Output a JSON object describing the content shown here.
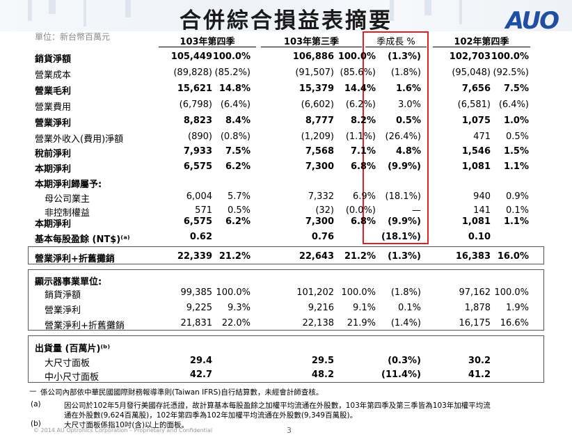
{
  "title": "合併綜合損益表摘要",
  "logo": "AUO",
  "unit": "單位：新台幣百萬元",
  "headers": {
    "q4_103": "103年第四季",
    "q3_103": "103年第三季",
    "qoq": "季成長 %",
    "q4_102": "102年第四季"
  },
  "rows": [
    {
      "label": "銷貨淨額",
      "v": [
        "105,449",
        "100.0%",
        "106,886",
        "100.0%",
        "(1.3%)",
        "102,703",
        "100.0%"
      ]
    },
    {
      "label": "營業成本",
      "v": [
        "(89,828)",
        "(85.2%)",
        "(91,507)",
        "(85.6%)",
        "(1.8%)",
        "(95,048)",
        "(92.5%)"
      ]
    },
    {
      "label": "營業毛利",
      "v": [
        "15,621",
        "14.8%",
        "15,379",
        "14.4%",
        "1.6%",
        "7,656",
        "7.5%"
      ]
    },
    {
      "label": "營業費用",
      "v": [
        "(6,798)",
        "(6.4%)",
        "(6,602)",
        "(6.2%)",
        "3.0%",
        "(6,581)",
        "(6.4%)"
      ]
    },
    {
      "label": "營業淨利",
      "v": [
        "8,823",
        "8.4%",
        "8,777",
        "8.2%",
        "0.5%",
        "1,075",
        "1.0%"
      ]
    },
    {
      "label": "營業外收入(費用)淨額",
      "v": [
        "(890)",
        "(0.8%)",
        "(1,209)",
        "(1.1%)",
        "(26.4%)",
        "471",
        "0.5%"
      ]
    },
    {
      "label": "稅前淨利",
      "v": [
        "7,933",
        "7.5%",
        "7,568",
        "7.1%",
        "4.8%",
        "1,546",
        "1.5%"
      ]
    },
    {
      "label": "本期淨利",
      "v": [
        "6,575",
        "6.2%",
        "7,300",
        "6.8%",
        "(9.9%)",
        "1,081",
        "1.1%"
      ]
    },
    {
      "label": "本期淨利歸屬予:",
      "v": [
        "",
        "",
        "",
        "",
        "",
        "",
        ""
      ]
    },
    {
      "label": "母公司業主",
      "v": [
        "6,004",
        "5.7%",
        "7,332",
        "6.9%",
        "(18.1%)",
        "940",
        "0.9%"
      ]
    },
    {
      "label": "非控制權益",
      "v": [
        "571",
        "0.5%",
        "(32)",
        "(0.0%)",
        "—",
        "141",
        "0.1%"
      ]
    },
    {
      "label": "本期淨利",
      "v": [
        "6,575",
        "6.2%",
        "7,300",
        "6.8%",
        "(9.9%)",
        "1,081",
        "1.1%"
      ]
    },
    {
      "label": "基本每股盈餘 (NT$)⁽ᵃ⁾",
      "v": [
        "0.62",
        "",
        "0.76",
        "",
        "(18.1%)",
        "0.10",
        ""
      ]
    },
    {
      "label": "營業淨利+折舊攤銷",
      "v": [
        "22,339",
        "21.2%",
        "22,643",
        "21.2%",
        "(1.3%)",
        "16,383",
        "16.0%"
      ]
    },
    {
      "label": "顯示器事業單位:",
      "v": [
        "",
        "",
        "",
        "",
        "",
        "",
        ""
      ]
    },
    {
      "label": "銷貨淨額",
      "v": [
        "99,385",
        "100.0%",
        "101,202",
        "100.0%",
        "(1.8%)",
        "97,162",
        "100.0%"
      ]
    },
    {
      "label": "營業淨利",
      "v": [
        "9,225",
        "9.3%",
        "9,216",
        "9.1%",
        "0.1%",
        "1,878",
        "1.9%"
      ]
    },
    {
      "label": "營業淨利+折舊攤銷",
      "v": [
        "21,831",
        "22.0%",
        "22,138",
        "21.9%",
        "(1.4%)",
        "16,175",
        "16.6%"
      ]
    },
    {
      "label": "出貨量 (百萬片)⁽ᵇ⁾",
      "v": [
        "",
        "",
        "",
        "",
        "",
        "",
        ""
      ]
    },
    {
      "label": "大尺寸面板",
      "v": [
        "29.4",
        "",
        "29.5",
        "",
        "(0.3%)",
        "30.2",
        ""
      ]
    },
    {
      "label": "中小尺寸面板",
      "v": [
        "42.7",
        "",
        "48.2",
        "",
        "(11.4%)",
        "41.2",
        ""
      ]
    }
  ],
  "notes": [
    {
      "mark": "—",
      "text": "係公司內部依中華民國國際財務報導準則(Taiwan IFRS)自行結算數，未經會計師查核。"
    },
    {
      "mark": "(a)",
      "text": "因公司於102年5月發行美國存託憑證，故計算基本每股盈餘之加權平均流通在外股數，103年第四季及第三季皆為103年加權平均流"
    },
    {
      "mark": "",
      "text": "通在外股數(9,624百萬股)，102年第四季為102年加權平均流通在外股數(9,349百萬股)。"
    },
    {
      "mark": "(b)",
      "text": "大尺寸面板係指10吋(含)以上的面板。"
    }
  ],
  "footer": "© 2014 AU Optronics Corporation – Proprietary and Confidential",
  "page_number": "3"
}
